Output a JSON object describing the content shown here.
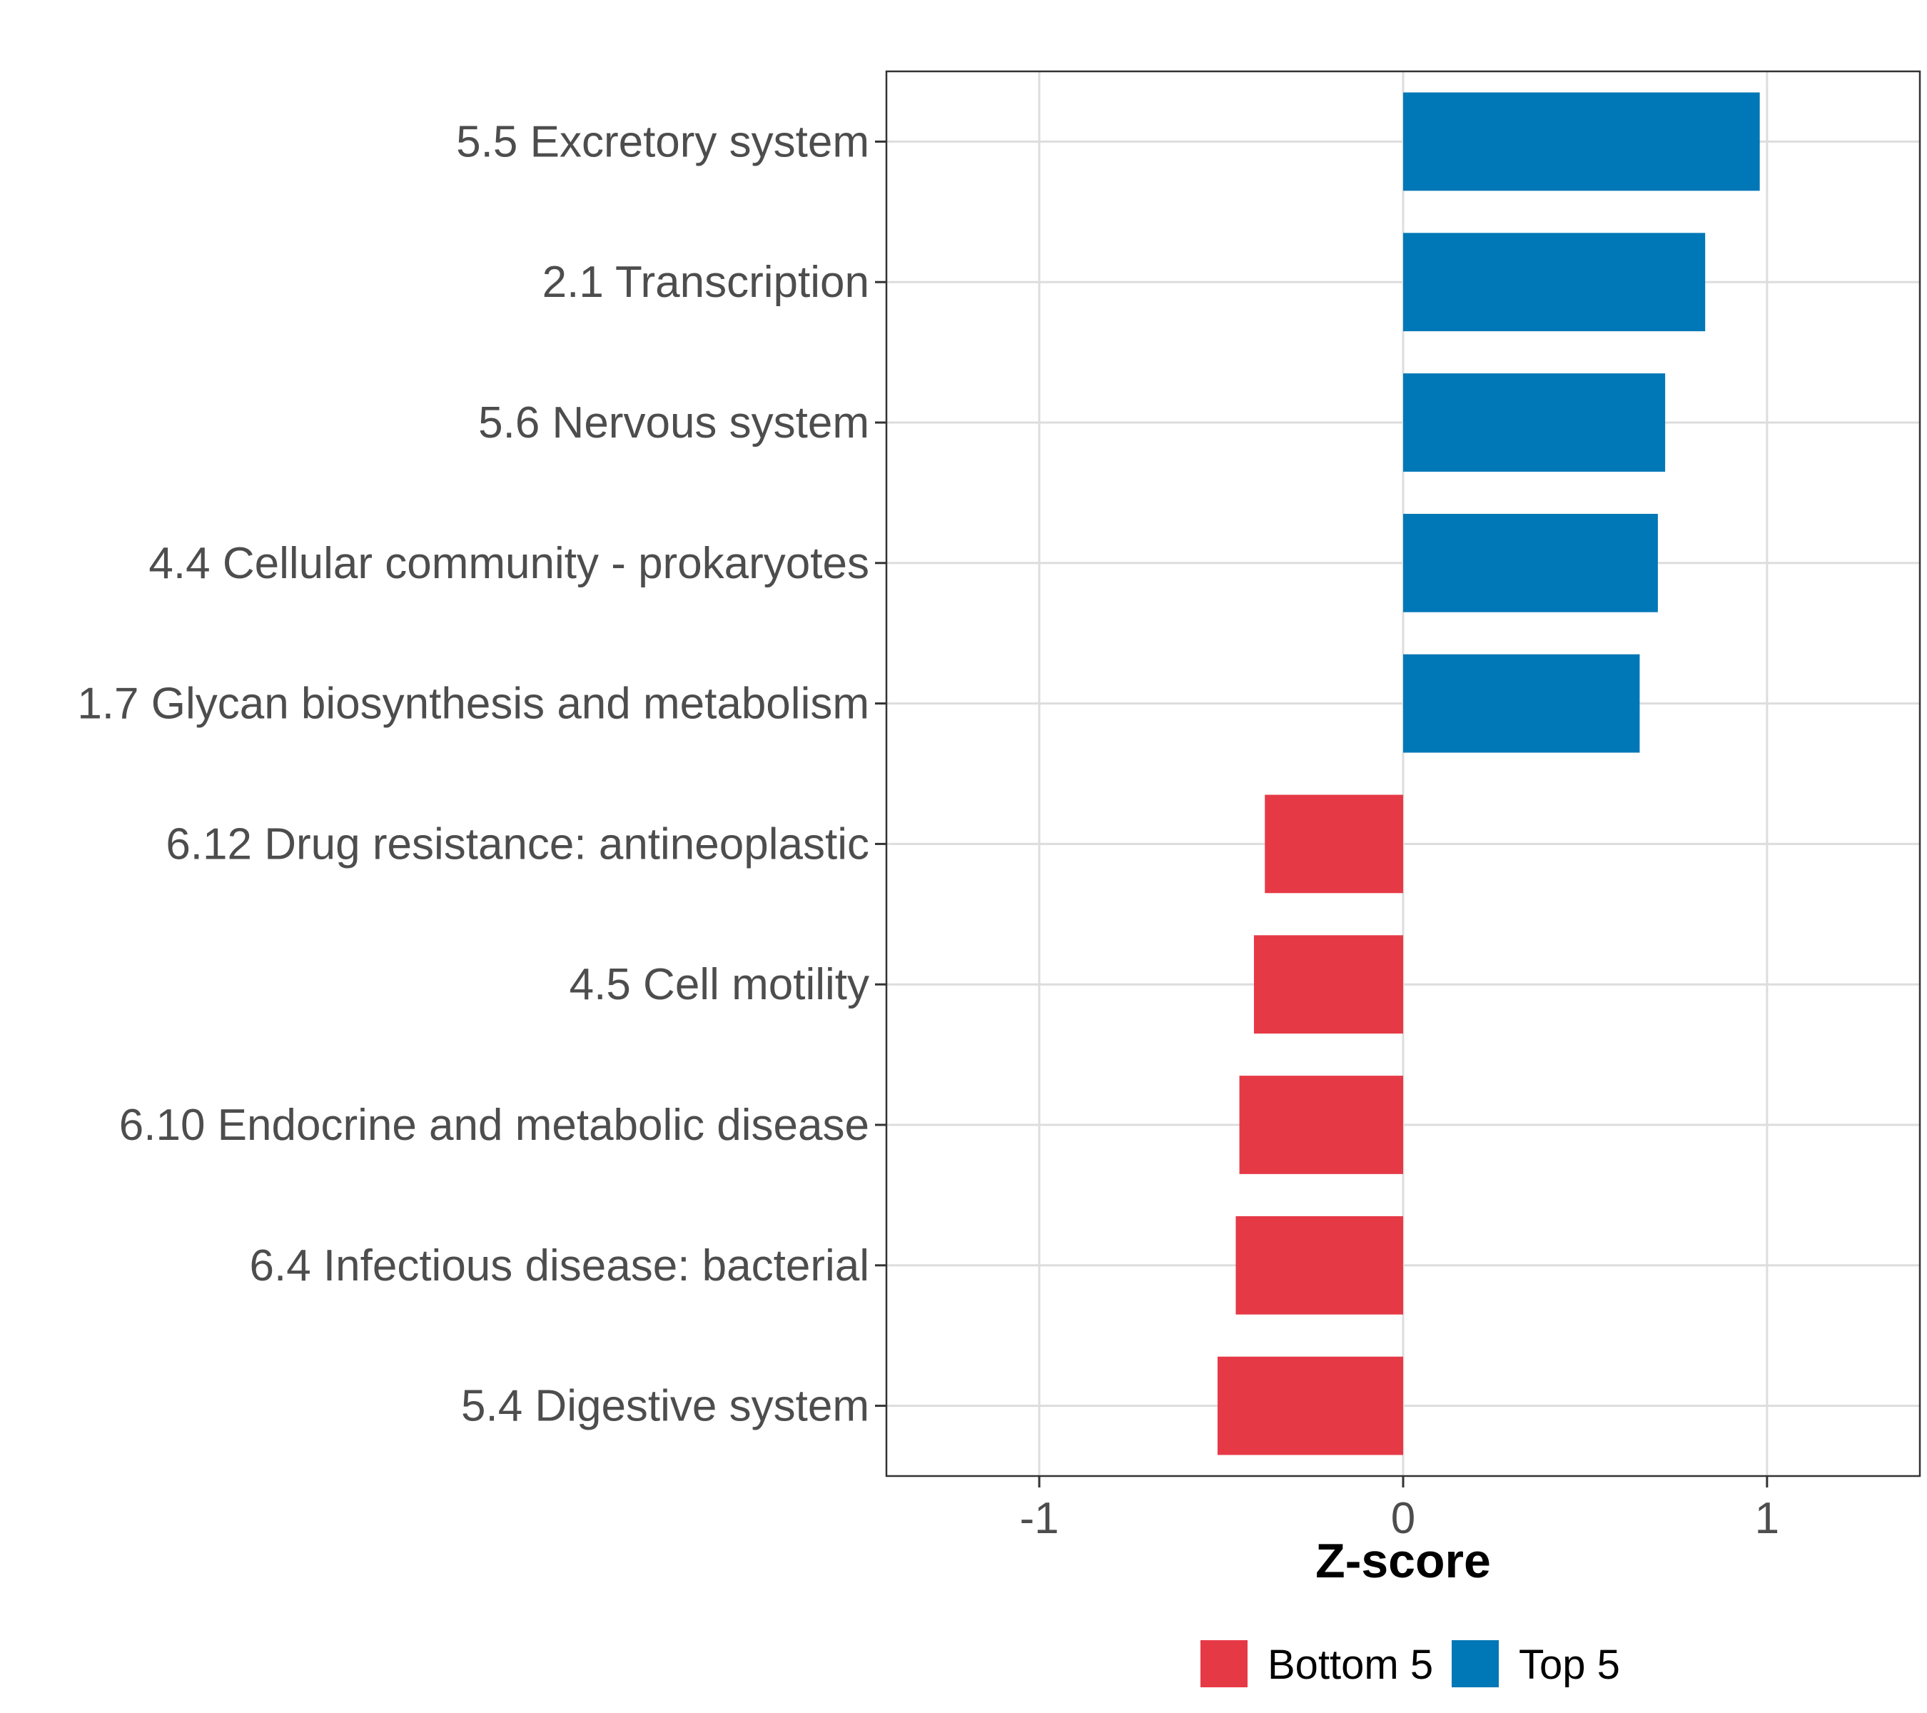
{
  "chart_data": {
    "type": "bar",
    "orientation": "horizontal",
    "categories": [
      "5.5 Excretory system",
      "2.1 Transcription",
      "5.6 Nervous system",
      "4.4 Cellular community - prokaryotes",
      "1.7 Glycan biosynthesis and metabolism",
      "6.12 Drug resistance: antineoplastic",
      "4.5 Cell motility",
      "6.10 Endocrine and metabolic disease",
      "6.4 Infectious disease: bacterial",
      "5.4 Digestive system"
    ],
    "values": [
      0.98,
      0.83,
      0.72,
      0.7,
      0.65,
      -0.38,
      -0.41,
      -0.45,
      -0.46,
      -0.51
    ],
    "groups": [
      "Top 5",
      "Top 5",
      "Top 5",
      "Top 5",
      "Top 5",
      "Bottom 5",
      "Bottom 5",
      "Bottom 5",
      "Bottom 5",
      "Bottom 5"
    ],
    "xlabel": "Z-score",
    "ylabel": "",
    "xlim": [
      -1.42,
      1.42
    ],
    "xticks": [
      -1,
      0,
      1
    ],
    "xtick_labels": [
      "-1",
      "0",
      "1"
    ],
    "grid": true,
    "legend": {
      "position": "bottom",
      "entries": [
        {
          "label": "Bottom 5",
          "color": "#e63946"
        },
        {
          "label": "Top 5",
          "color": "#0077b6"
        }
      ]
    },
    "colors": {
      "Bottom 5": "#e63946",
      "Top 5": "#0077b6"
    }
  }
}
